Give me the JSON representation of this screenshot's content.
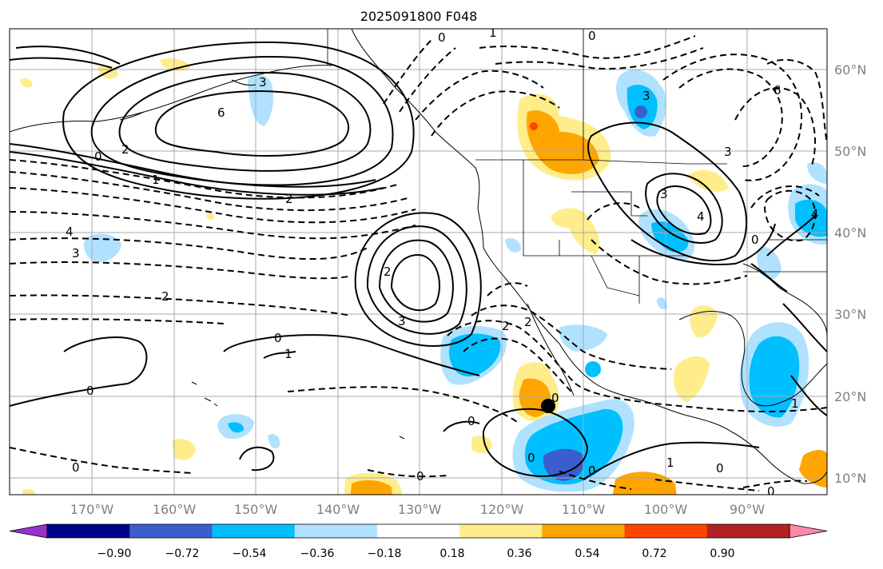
{
  "title": "2025091800 F048",
  "longitude_labels": [
    "170°W",
    "160°W",
    "150°W",
    "140°W",
    "130°W",
    "120°W",
    "110°W",
    "100°W",
    "90°W"
  ],
  "latitude_labels": [
    "60°N",
    "50°N",
    "40°N",
    "30°N",
    "20°N",
    "10°N"
  ],
  "colorbar": {
    "ticks": [
      "−0.90",
      "−0.72",
      "−0.54",
      "−0.36",
      "−0.18",
      "0.18",
      "0.36",
      "0.54",
      "0.72",
      "0.90"
    ],
    "colors": [
      "#9932cc",
      "#00008b",
      "#3a5fcd",
      "#00bfff",
      "#b0e2ff",
      "#ffffff",
      "#ffec8b",
      "#ffa500",
      "#ff4500",
      "#b22222",
      "#ff88aa"
    ]
  },
  "contour_labels": [
    "0",
    "1",
    "0",
    "3",
    "6",
    "0",
    "2",
    "1",
    "2",
    "4",
    "3",
    "2",
    "3",
    "2",
    "0",
    "1",
    "0",
    "0",
    "0",
    "0",
    "2",
    "2",
    "0",
    "0",
    "0",
    "1",
    "0",
    "4",
    "3",
    "6",
    "3",
    "0",
    "3",
    "4",
    "0",
    "1"
  ],
  "marker": "black-dot"
}
